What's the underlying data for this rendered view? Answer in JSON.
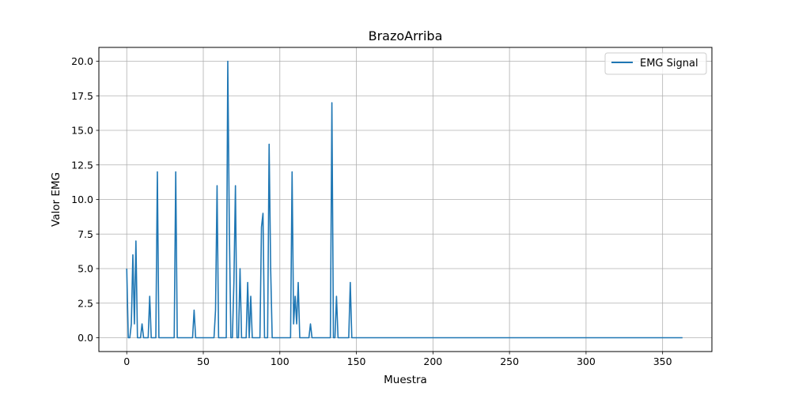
{
  "chart_data": {
    "type": "line",
    "title": "BrazoArriba",
    "xlabel": "Muestra",
    "ylabel": "Valor EMG",
    "xlim": [
      -18.2,
      382.2
    ],
    "ylim": [
      -1.0,
      21.0
    ],
    "x_ticks": [
      0,
      50,
      100,
      150,
      200,
      250,
      300,
      350
    ],
    "y_ticks": [
      0.0,
      2.5,
      5.0,
      7.5,
      10.0,
      12.5,
      15.0,
      17.5,
      20.0
    ],
    "x_tick_labels": [
      "0",
      "50",
      "100",
      "150",
      "200",
      "250",
      "300",
      "350"
    ],
    "y_tick_labels": [
      "0.0",
      "2.5",
      "5.0",
      "7.5",
      "10.0",
      "12.5",
      "15.0",
      "17.5",
      "20.0"
    ],
    "grid": true,
    "legend_position": "upper right",
    "series": [
      {
        "name": "EMG Signal",
        "color": "#1f77b4",
        "x": [
          0,
          1,
          2,
          3,
          4,
          5,
          6,
          7,
          8,
          9,
          10,
          11,
          12,
          13,
          14,
          15,
          16,
          17,
          18,
          19,
          20,
          21,
          22,
          23,
          24,
          25,
          26,
          27,
          28,
          29,
          30,
          31,
          32,
          33,
          34,
          35,
          36,
          37,
          38,
          39,
          40,
          41,
          42,
          43,
          44,
          45,
          46,
          47,
          48,
          49,
          50,
          51,
          52,
          53,
          54,
          55,
          56,
          57,
          58,
          59,
          60,
          61,
          62,
          63,
          64,
          65,
          66,
          67,
          68,
          69,
          70,
          71,
          72,
          73,
          74,
          75,
          76,
          77,
          78,
          79,
          80,
          81,
          82,
          83,
          84,
          85,
          86,
          87,
          88,
          89,
          90,
          91,
          92,
          93,
          94,
          95,
          96,
          97,
          98,
          99,
          100,
          101,
          102,
          103,
          104,
          105,
          106,
          107,
          108,
          109,
          110,
          111,
          112,
          113,
          114,
          115,
          116,
          117,
          118,
          119,
          120,
          121,
          122,
          123,
          124,
          125,
          126,
          127,
          128,
          129,
          130,
          131,
          132,
          133,
          134,
          135,
          136,
          137,
          138,
          139,
          140,
          141,
          142,
          143,
          144,
          145,
          146,
          147,
          363
        ],
        "y": [
          5,
          0,
          0,
          1,
          6,
          1,
          7,
          0,
          0,
          0,
          1,
          0,
          0,
          0,
          0,
          3,
          0,
          0,
          0,
          0,
          12,
          0,
          0,
          0,
          0,
          0,
          0,
          0,
          0,
          0,
          0,
          0,
          12,
          0,
          0,
          0,
          0,
          0,
          0,
          0,
          0,
          0,
          0,
          0,
          2,
          0,
          0,
          0,
          0,
          0,
          0,
          0,
          0,
          0,
          0,
          0,
          0,
          0,
          2,
          11,
          0,
          0,
          0,
          0,
          0,
          0,
          20,
          8,
          0,
          0,
          4,
          11,
          0,
          0,
          5,
          0,
          0,
          0,
          0,
          4,
          0,
          3,
          0,
          0,
          0,
          0,
          0,
          0,
          8,
          9,
          0,
          0,
          0,
          14,
          5,
          0,
          0,
          0,
          0,
          0,
          0,
          0,
          0,
          0,
          0,
          0,
          0,
          0,
          12,
          1,
          3,
          1,
          4,
          0,
          0,
          0,
          0,
          0,
          0,
          0,
          1,
          0,
          0,
          0,
          0,
          0,
          0,
          0,
          0,
          0,
          0,
          0,
          0,
          0,
          17,
          0,
          0,
          3,
          0,
          0,
          0,
          0,
          0,
          0,
          0,
          0,
          4,
          0,
          0
        ]
      }
    ]
  }
}
